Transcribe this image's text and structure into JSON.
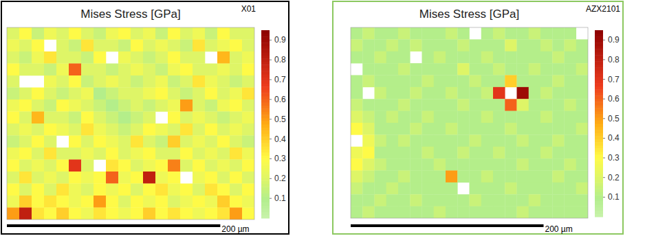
{
  "chart_data": [
    {
      "type": "heatmap",
      "title": "Mises Stress [GPa]",
      "annotation": "X01",
      "tick_labels": false,
      "xlim": [
        0,
        232
      ],
      "ylim": [
        0,
        181
      ],
      "scale_bar": {
        "value": 200,
        "label": "200 µm"
      },
      "colorbar": {
        "range": [
          0,
          0.95
        ],
        "ticks": [
          0.1,
          0.2,
          0.3,
          0.4,
          0.5,
          0.6,
          0.7,
          0.8,
          0.9
        ]
      },
      "cells": [
        [
          0.2,
          0.3,
          0.15,
          0.25,
          0.2,
          0.3,
          0.2,
          0.15,
          0.25,
          0.3,
          0.2,
          0.25,
          0.15,
          0.3,
          0.2,
          0.25,
          0.15,
          0.3,
          0.2,
          0.2
        ],
        [
          0.25,
          0.2,
          0.3,
          null,
          0.2,
          0.15,
          0.35,
          0.2,
          0.2,
          0.15,
          0.3,
          0.2,
          0.25,
          0.2,
          0.15,
          0.35,
          0.2,
          0.25,
          0.3,
          0.2
        ],
        [
          0.2,
          0.15,
          0.25,
          0.35,
          0.2,
          0.2,
          0.15,
          0.3,
          null,
          0.25,
          0.2,
          0.15,
          0.2,
          0.3,
          0.2,
          0.2,
          null,
          0.45,
          0.2,
          0.25
        ],
        [
          0.3,
          0.2,
          0.2,
          0.15,
          0.25,
          0.6,
          0.2,
          0.2,
          0.15,
          0.2,
          0.25,
          0.2,
          0.15,
          0.25,
          0.3,
          0.2,
          0.2,
          0.25,
          0.2,
          0.3
        ],
        [
          0.2,
          null,
          null,
          0.25,
          0.2,
          0.3,
          0.15,
          0.2,
          0.25,
          0.2,
          0.15,
          0.2,
          0.25,
          0.15,
          0.2,
          0.35,
          0.25,
          0.2,
          0.15,
          0.2
        ],
        [
          0.15,
          0.2,
          0.3,
          0.2,
          0.15,
          0.2,
          0.25,
          0.1,
          0.15,
          0.2,
          0.2,
          0.25,
          0.3,
          0.2,
          0.15,
          0.2,
          0.3,
          0.2,
          0.25,
          0.35
        ],
        [
          0.25,
          0.3,
          0.2,
          0.15,
          0.3,
          0.25,
          0.2,
          0.15,
          0.1,
          0.15,
          0.2,
          0.15,
          0.2,
          0.25,
          0.5,
          0.2,
          0.15,
          0.25,
          0.3,
          0.2
        ],
        [
          0.3,
          0.2,
          0.45,
          0.2,
          0.2,
          0.15,
          0.3,
          0.2,
          0.15,
          0.1,
          0.15,
          0.2,
          null,
          0.3,
          0.2,
          0.25,
          0.2,
          0.15,
          0.2,
          0.25
        ],
        [
          0.2,
          0.25,
          0.2,
          0.3,
          0.25,
          0.2,
          0.35,
          0.25,
          0.2,
          0.15,
          0.2,
          0.3,
          0.25,
          0.2,
          0.35,
          0.2,
          0.3,
          0.2,
          0.25,
          0.2
        ],
        [
          0.15,
          0.2,
          0.3,
          0.2,
          null,
          0.3,
          0.2,
          0.3,
          0.25,
          0.2,
          0.35,
          0.2,
          0.15,
          0.4,
          0.2,
          0.25,
          0.2,
          0.3,
          0.2,
          0.15
        ],
        [
          0.25,
          0.3,
          0.2,
          0.35,
          0.2,
          0.2,
          0.25,
          0.2,
          0.3,
          0.2,
          0.25,
          0.3,
          0.2,
          0.2,
          0.3,
          0.2,
          0.25,
          0.2,
          0.35,
          0.25
        ],
        [
          0.3,
          0.2,
          0.25,
          0.2,
          0.3,
          0.7,
          0.2,
          null,
          0.35,
          0.3,
          0.2,
          0.25,
          0.3,
          0.55,
          0.2,
          0.3,
          0.2,
          0.25,
          0.2,
          0.3
        ],
        [
          0.2,
          0.35,
          0.2,
          0.25,
          0.2,
          0.3,
          0.25,
          0.3,
          0.6,
          0.25,
          0.3,
          0.8,
          0.25,
          0.3,
          null,
          0.25,
          0.3,
          0.2,
          0.3,
          0.2
        ],
        [
          0.3,
          0.2,
          0.3,
          0.2,
          0.35,
          0.25,
          0.2,
          0.3,
          0.25,
          0.3,
          0.2,
          0.3,
          0.35,
          0.25,
          0.3,
          0.2,
          0.35,
          0.3,
          0.2,
          0.3
        ],
        [
          0.25,
          0.4,
          0.3,
          0.35,
          0.3,
          0.25,
          0.3,
          0.5,
          0.3,
          0.2,
          0.3,
          0.25,
          0.3,
          0.2,
          0.25,
          0.3,
          0.25,
          0.4,
          0.3,
          0.25
        ],
        [
          0.5,
          0.8,
          0.35,
          0.3,
          0.4,
          0.3,
          0.25,
          0.35,
          0.3,
          0.25,
          0.3,
          0.4,
          0.3,
          0.35,
          0.3,
          0.25,
          0.3,
          0.35,
          0.5,
          0.3
        ]
      ]
    },
    {
      "type": "heatmap",
      "title": "Mises Stress [GPa]",
      "annotation": "AZX2101",
      "tick_labels": false,
      "xlim": [
        0,
        246
      ],
      "ylim": [
        0,
        198
      ],
      "scale_bar": {
        "value": 200,
        "label": "200 µm"
      },
      "colorbar": {
        "range": [
          0,
          0.95
        ],
        "ticks": [
          0.1,
          0.2,
          0.3,
          0.4,
          0.5,
          0.6,
          0.7,
          0.8,
          0.9
        ]
      },
      "cells": [
        [
          0.1,
          0.15,
          0.1,
          0.1,
          0.15,
          0.1,
          0.1,
          0.1,
          0.15,
          0.1,
          null,
          0.1,
          0.15,
          0.1,
          0.1,
          0.15,
          0.1,
          0.1,
          0.1,
          null
        ],
        [
          0.15,
          0.1,
          0.1,
          0.15,
          0.1,
          0.15,
          0.1,
          0.1,
          0.1,
          0.15,
          0.1,
          0.1,
          0.1,
          0.2,
          0.1,
          0.1,
          0.15,
          0.1,
          0.15,
          0.1
        ],
        [
          0.1,
          0.1,
          0.15,
          0.1,
          0.1,
          null,
          0.1,
          0.15,
          0.1,
          0.1,
          0.1,
          0.15,
          0.1,
          0.1,
          0.1,
          0.1,
          0.1,
          0.15,
          0.1,
          0.1
        ],
        [
          null,
          0.1,
          0.1,
          0.1,
          0.15,
          0.1,
          0.1,
          0.1,
          0.1,
          0.2,
          0.1,
          0.1,
          0.15,
          0.1,
          0.1,
          0.15,
          0.1,
          0.1,
          0.1,
          0.15
        ],
        [
          0.1,
          0.15,
          0.1,
          0.1,
          0.1,
          0.1,
          0.15,
          0.1,
          0.1,
          0.1,
          0.15,
          0.1,
          0.1,
          0.4,
          0.1,
          0.1,
          0.1,
          0.15,
          0.1,
          0.1
        ],
        [
          0.1,
          null,
          0.15,
          0.1,
          0.1,
          0.15,
          0.1,
          0.1,
          0.15,
          0.1,
          0.1,
          0.15,
          0.7,
          null,
          0.9,
          0.1,
          0.15,
          0.1,
          0.1,
          0.1
        ],
        [
          0.15,
          0.1,
          0.1,
          0.1,
          0.15,
          0.1,
          0.1,
          0.1,
          0.1,
          0.15,
          0.1,
          0.1,
          0.1,
          0.6,
          0.2,
          0.1,
          0.1,
          0.1,
          0.15,
          0.1
        ],
        [
          0.2,
          0.15,
          0.1,
          0.15,
          0.1,
          0.1,
          0.15,
          0.1,
          0.1,
          0.1,
          0.1,
          0.15,
          0.1,
          0.1,
          0.1,
          0.1,
          0.15,
          0.1,
          0.1,
          0.1
        ],
        [
          0.3,
          0.2,
          0.1,
          0.1,
          0.1,
          0.15,
          0.1,
          0.1,
          0.15,
          0.1,
          0.1,
          0.1,
          0.1,
          0.15,
          0.1,
          0.1,
          0.1,
          0.1,
          0.1,
          0.15
        ],
        [
          null,
          0.25,
          0.15,
          0.1,
          0.15,
          0.1,
          0.1,
          0.1,
          0.1,
          0.1,
          0.15,
          0.1,
          0.1,
          0.1,
          0.15,
          0.1,
          0.1,
          0.15,
          0.1,
          0.1
        ],
        [
          0.25,
          0.3,
          0.1,
          0.1,
          0.1,
          0.1,
          0.15,
          0.1,
          0.1,
          0.15,
          0.1,
          0.1,
          0.15,
          0.1,
          0.1,
          0.1,
          0.15,
          0.1,
          0.1,
          0.1
        ],
        [
          0.3,
          0.2,
          0.15,
          0.1,
          0.1,
          0.1,
          0.1,
          0.15,
          0.1,
          0.1,
          0.1,
          0.1,
          0.1,
          0.1,
          0.15,
          0.1,
          0.1,
          0.1,
          0.15,
          0.1
        ],
        [
          0.2,
          0.15,
          0.1,
          0.1,
          0.15,
          0.1,
          0.1,
          0.1,
          0.5,
          0.1,
          0.1,
          0.15,
          0.1,
          0.1,
          0.1,
          0.1,
          0.1,
          0.15,
          0.1,
          0.1
        ],
        [
          0.15,
          0.1,
          0.1,
          0.15,
          0.1,
          0.1,
          0.1,
          0.1,
          0.1,
          null,
          0.1,
          0.1,
          0.1,
          0.15,
          0.1,
          0.1,
          0.1,
          0.1,
          0.1,
          0.15
        ],
        [
          0.1,
          0.1,
          0.15,
          0.1,
          0.1,
          0.15,
          0.1,
          0.1,
          0.1,
          0.1,
          0.15,
          0.1,
          0.1,
          0.1,
          0.1,
          0.15,
          0.1,
          0.1,
          0.1,
          0.1
        ],
        [
          0.1,
          0.15,
          0.1,
          0.1,
          0.1,
          0.1,
          0.1,
          0.15,
          0.1,
          0.1,
          0.1,
          0.1,
          0.1,
          0.1,
          0.15,
          0.1,
          0.1,
          0.1,
          0.1,
          0.1
        ]
      ]
    }
  ]
}
